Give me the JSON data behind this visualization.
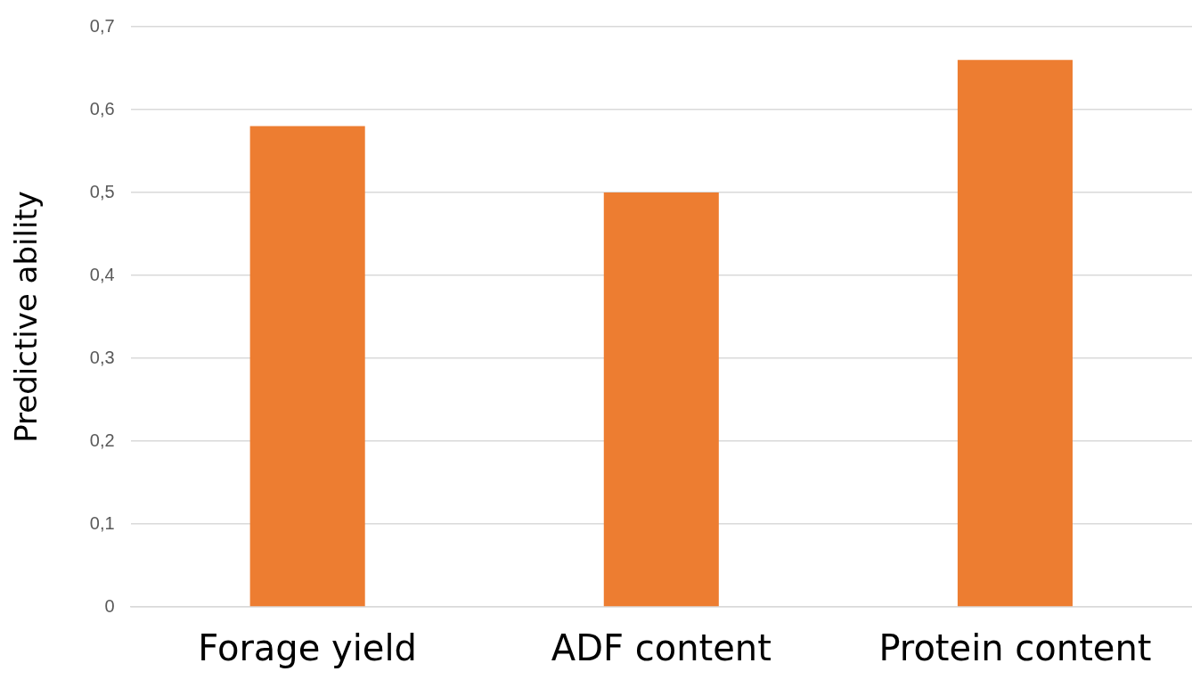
{
  "chart_data": {
    "type": "bar",
    "ylabel": "Predictive ability",
    "categories": [
      "Forage yield",
      "ADF content",
      "Protein content"
    ],
    "values": [
      0.58,
      0.5,
      0.66
    ],
    "color": "#ed7d31",
    "ylim": [
      0,
      0.7
    ],
    "yticks": [
      0,
      {
        "value": 0.1,
        "label": "0,1"
      },
      {
        "value": 0.2,
        "label": "0,2"
      },
      {
        "value": 0.3,
        "label": "0,3"
      },
      {
        "value": 0.4,
        "label": "0,4"
      },
      {
        "value": 0.5,
        "label": "0,5"
      },
      {
        "value": 0.6,
        "label": "0,6"
      },
      {
        "value": 0.7,
        "label": "0,7"
      }
    ],
    "grid": "y",
    "legend": false
  }
}
